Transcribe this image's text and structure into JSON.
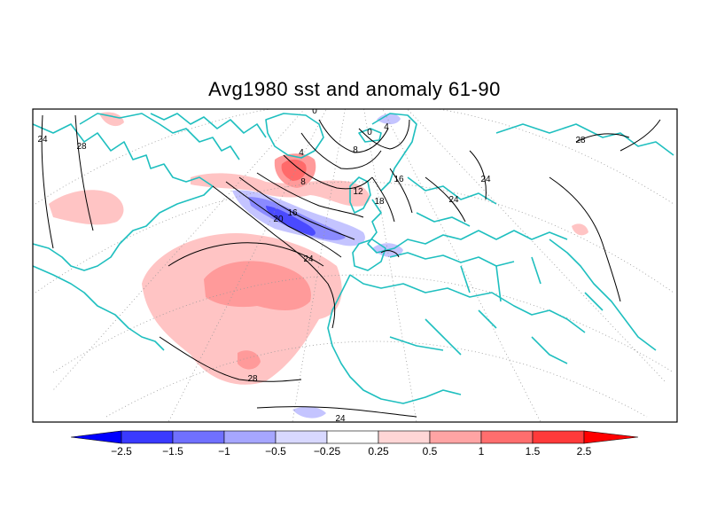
{
  "title": "Avg1980 sst and anomaly 61-90",
  "colorbar": {
    "bins": [
      {
        "color": "#0000ff"
      },
      {
        "color": "#3a3aff"
      },
      {
        "color": "#7070ff"
      },
      {
        "color": "#a6a6ff"
      },
      {
        "color": "#d8d8ff"
      },
      {
        "color": "#ffffff"
      },
      {
        "color": "#ffd6d6"
      },
      {
        "color": "#ffa4a4"
      },
      {
        "color": "#ff6e6e"
      },
      {
        "color": "#ff3a3a"
      },
      {
        "color": "#ff0000"
      }
    ],
    "labels": [
      "-2.5",
      "-1.5",
      "-1",
      "-0.5",
      "-0.25",
      "0.25",
      "0.5",
      "1",
      "1.5",
      "2.5"
    ]
  },
  "contour_labels": [
    "24",
    "28",
    "0",
    "0",
    "4",
    "4",
    "8",
    "8",
    "12",
    "16",
    "16",
    "18",
    "20",
    "24",
    "24",
    "24",
    "28",
    "28",
    "24"
  ],
  "colors": {
    "coastline": "#1fbfbf",
    "graticule": "#999999",
    "contour": "#000000",
    "warm": "#ffc4c4",
    "warm2": "#ff9a9a",
    "warm3": "#ff6a6a",
    "cool": "#c4c4ff",
    "cool2": "#8a8aff",
    "cool3": "#4a4aff"
  }
}
